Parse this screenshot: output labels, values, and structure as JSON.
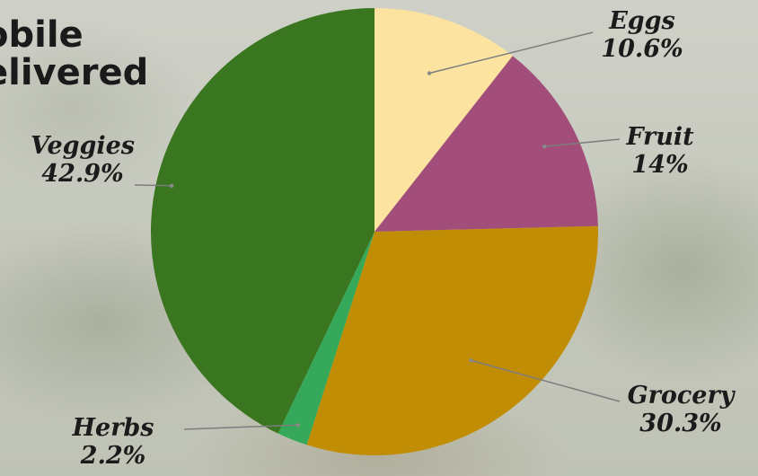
{
  "heading": {
    "line1": "obile",
    "line2": "elivered"
  },
  "chart_data": {
    "type": "pie",
    "title": "",
    "slices": [
      {
        "label": "Eggs",
        "value": 10.6,
        "display": "10.6%",
        "color": "#fde3a0"
      },
      {
        "label": "Fruit",
        "value": 14,
        "display": "14%",
        "color": "#a34e7a"
      },
      {
        "label": "Grocery",
        "value": 30.3,
        "display": "30.3%",
        "color": "#c08d05"
      },
      {
        "label": "Herbs",
        "value": 2.2,
        "display": "2.2%",
        "color": "#35a85a"
      },
      {
        "label": "Veggies",
        "value": 42.9,
        "display": "42.9%",
        "color": "#3a7520"
      }
    ],
    "start_angle_deg": 0,
    "direction": "clockwise",
    "legend": "none",
    "label_placement": "outside-with-leader-lines"
  }
}
